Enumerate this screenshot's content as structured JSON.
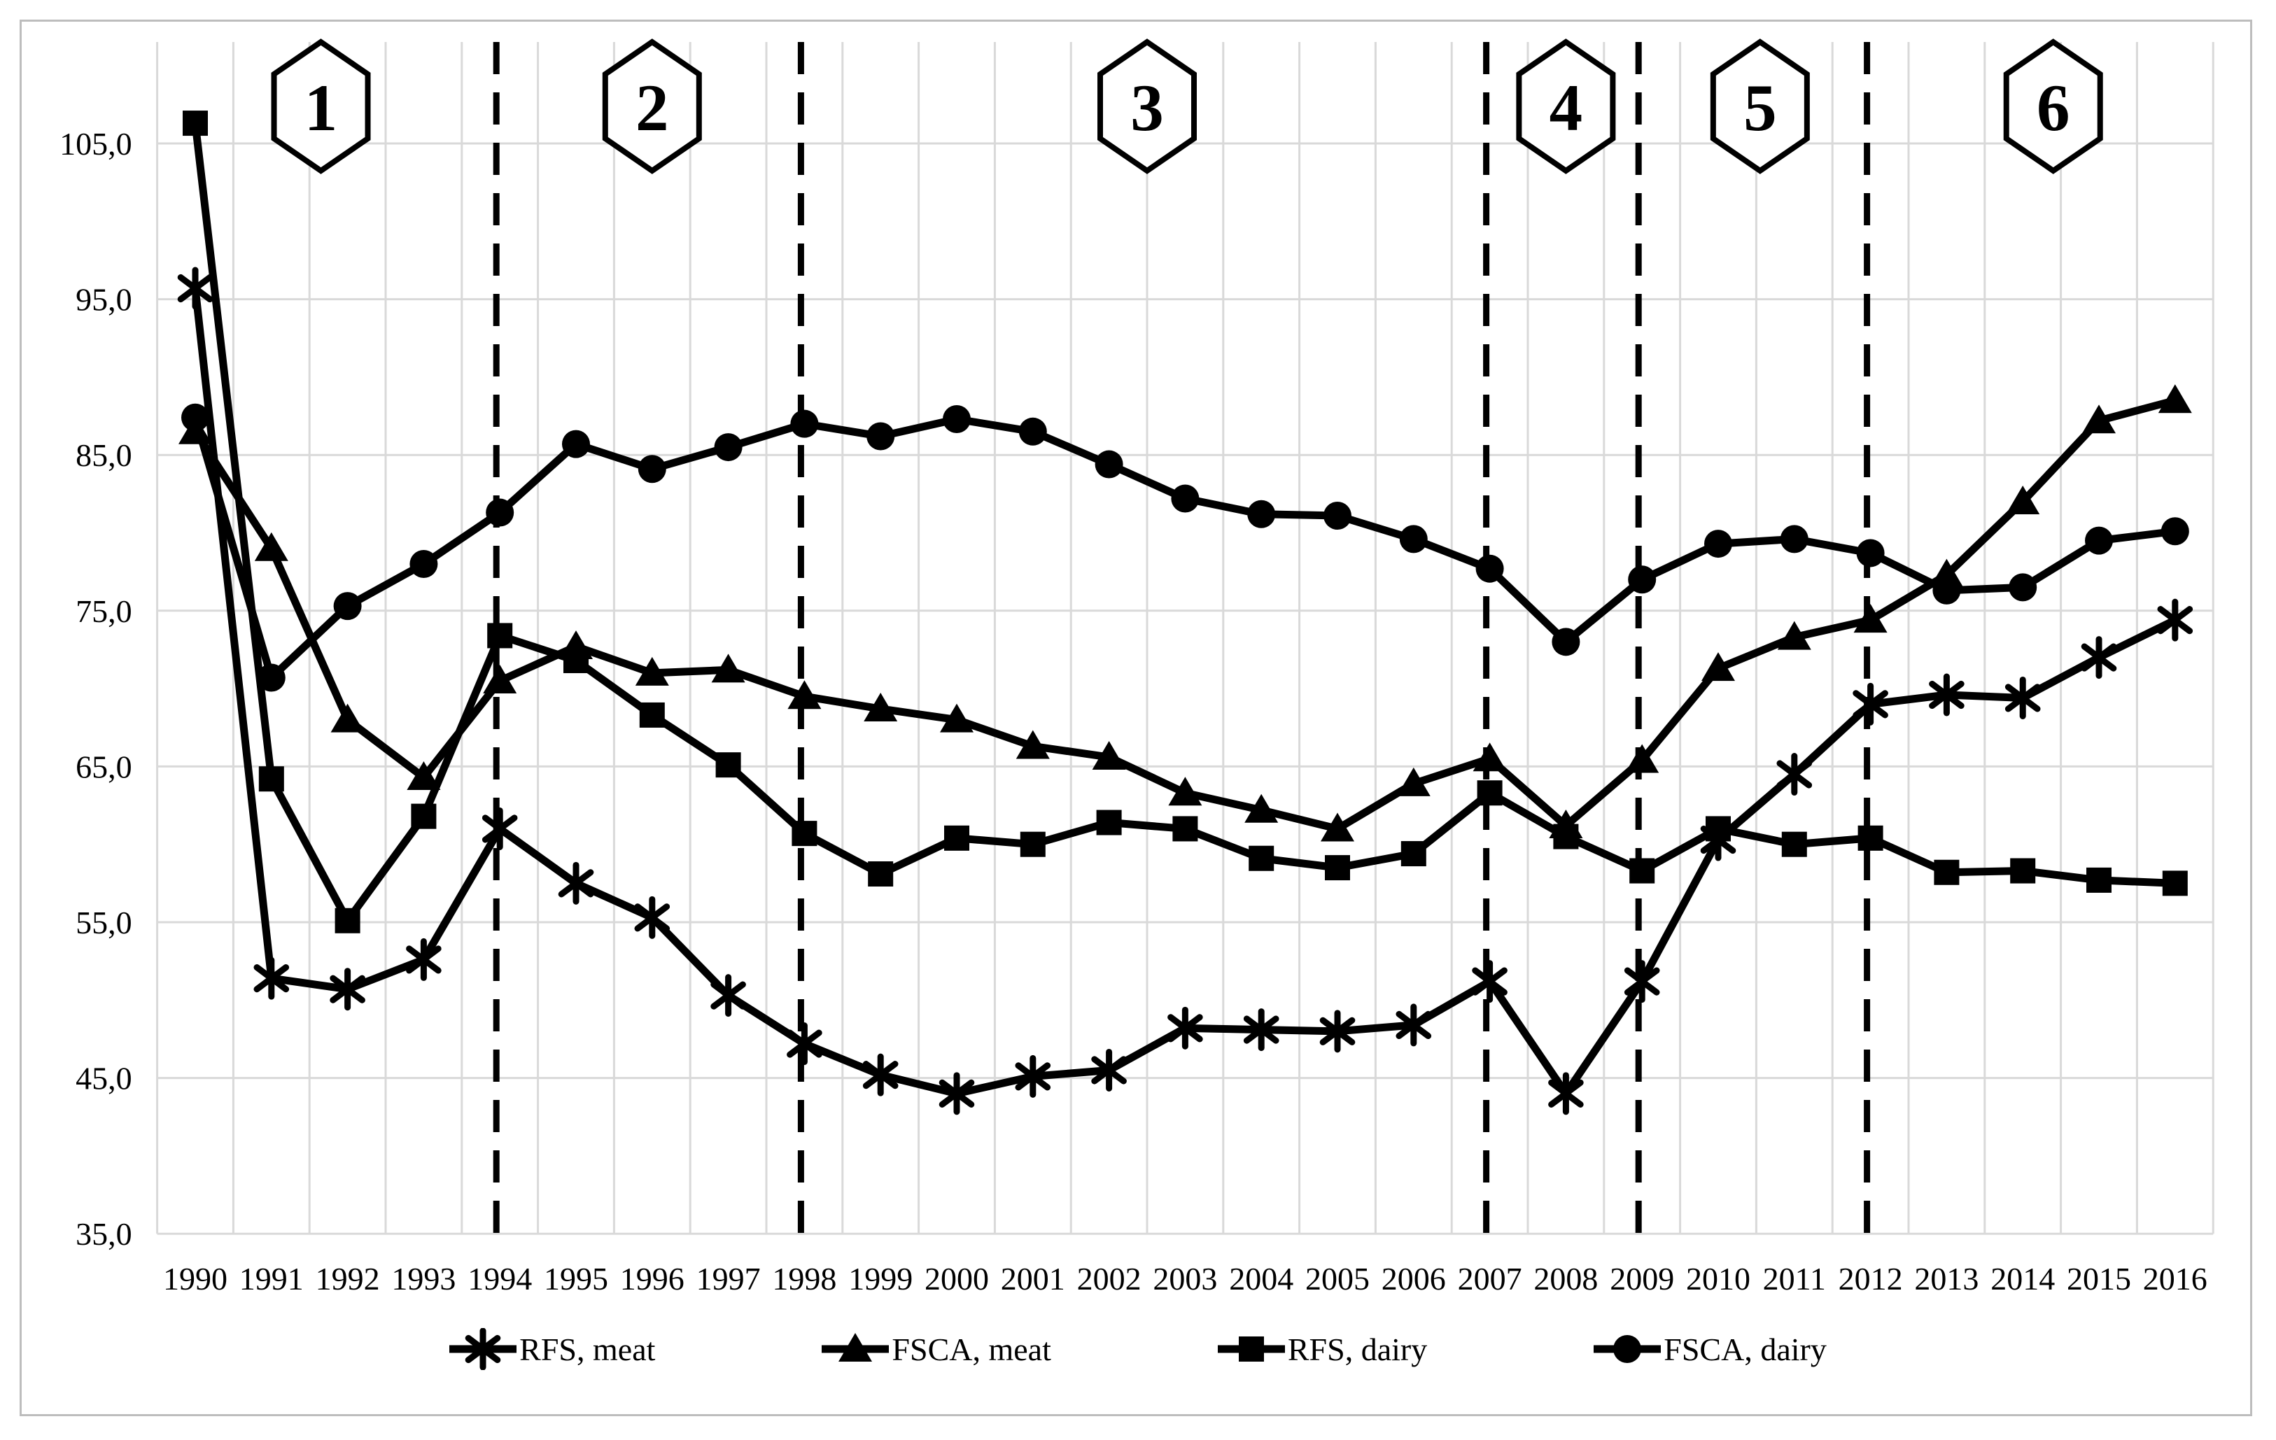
{
  "chart_data": {
    "type": "line",
    "title": "",
    "xlabel": "",
    "ylabel": "",
    "x": [
      1990,
      1991,
      1992,
      1993,
      1994,
      1995,
      1996,
      1997,
      1998,
      1999,
      2000,
      2001,
      2002,
      2003,
      2004,
      2005,
      2006,
      2007,
      2008,
      2009,
      2010,
      2011,
      2012,
      2013,
      2014,
      2015,
      2016
    ],
    "series": [
      {
        "name": "RFS, meat",
        "marker": "asterisk",
        "values": [
          95.7,
          51.4,
          50.7,
          52.6,
          61.0,
          57.5,
          55.3,
          50.3,
          47.2,
          45.2,
          44.0,
          45.1,
          45.5,
          48.2,
          48.1,
          48.0,
          48.4,
          51.2,
          44.0,
          51.2,
          60.3,
          64.5,
          69.0,
          69.6,
          69.4,
          72.0,
          74.4
        ]
      },
      {
        "name": "FSCA, meat",
        "marker": "triangle",
        "values": [
          86.5,
          79.0,
          68.0,
          64.3,
          70.5,
          72.7,
          71.0,
          71.2,
          69.5,
          68.7,
          68.0,
          66.3,
          65.6,
          63.3,
          62.2,
          61.0,
          63.9,
          65.5,
          61.2,
          65.4,
          71.3,
          73.3,
          74.4,
          77.3,
          82.0,
          87.2,
          88.5
        ]
      },
      {
        "name": "RFS, dairy",
        "marker": "square",
        "values": [
          106.3,
          64.2,
          55.1,
          61.8,
          73.4,
          71.8,
          68.3,
          65.1,
          60.7,
          58.1,
          60.4,
          60.0,
          61.4,
          61.0,
          59.1,
          58.5,
          59.4,
          63.3,
          60.5,
          58.3,
          61.0,
          60.0,
          60.4,
          58.2,
          58.3,
          57.7,
          57.5
        ]
      },
      {
        "name": "FSCA, dairy",
        "marker": "circle",
        "values": [
          87.4,
          70.7,
          75.3,
          78.0,
          81.3,
          85.7,
          84.1,
          85.5,
          87.0,
          86.2,
          87.3,
          86.5,
          84.4,
          82.2,
          81.2,
          81.1,
          79.6,
          77.7,
          73.0,
          77.0,
          79.3,
          79.6,
          78.7,
          76.3,
          76.5,
          79.5,
          80.1
        ]
      }
    ],
    "ylim": [
      35,
      105
    ],
    "ytick_step": 10,
    "ytick_labels": [
      "105,0",
      "95,0",
      "85,0",
      "75,0",
      "65,0",
      "55,0",
      "45,0",
      "35,0"
    ],
    "grid": true,
    "legend_position": "bottom",
    "period_dividers_years": [
      1994,
      1998,
      2007,
      2009,
      2012
    ],
    "period_badges": [
      {
        "label": "1",
        "year": 1991.65
      },
      {
        "label": "2",
        "year": 1996.0
      },
      {
        "label": "3",
        "year": 2002.5
      },
      {
        "label": "4",
        "year": 2008.0
      },
      {
        "label": "5",
        "year": 2010.55
      },
      {
        "label": "6",
        "year": 2014.4
      }
    ],
    "colors": {
      "series": "#000000",
      "gridline": "#d9d9d9",
      "background": "#ffffff",
      "figure_border": "#bdbdbd",
      "text": "#000000"
    }
  }
}
